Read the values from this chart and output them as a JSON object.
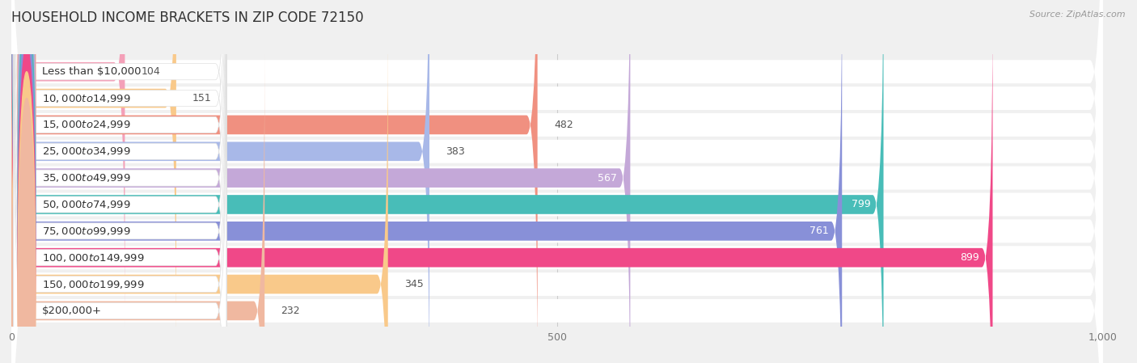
{
  "title": "HOUSEHOLD INCOME BRACKETS IN ZIP CODE 72150",
  "source": "Source: ZipAtlas.com",
  "categories": [
    "Less than $10,000",
    "$10,000 to $14,999",
    "$15,000 to $24,999",
    "$25,000 to $34,999",
    "$35,000 to $49,999",
    "$50,000 to $74,999",
    "$75,000 to $99,999",
    "$100,000 to $149,999",
    "$150,000 to $199,999",
    "$200,000+"
  ],
  "values": [
    104,
    151,
    482,
    383,
    567,
    799,
    761,
    899,
    345,
    232
  ],
  "bar_colors": [
    "#f4a0b8",
    "#f9c98a",
    "#f09080",
    "#a8b8e8",
    "#c4a8d8",
    "#48bdb8",
    "#8890d8",
    "#f04888",
    "#f9c98a",
    "#f0b8a0"
  ],
  "xlim": [
    0,
    1000
  ],
  "xticks": [
    0,
    500,
    1000
  ],
  "xtick_labels": [
    "0",
    "500",
    "1,000"
  ],
  "background_color": "#f0f0f0",
  "row_bg_color": "#ffffff",
  "title_fontsize": 12,
  "label_fontsize": 9.5,
  "value_fontsize": 9,
  "white_text_threshold": 500
}
